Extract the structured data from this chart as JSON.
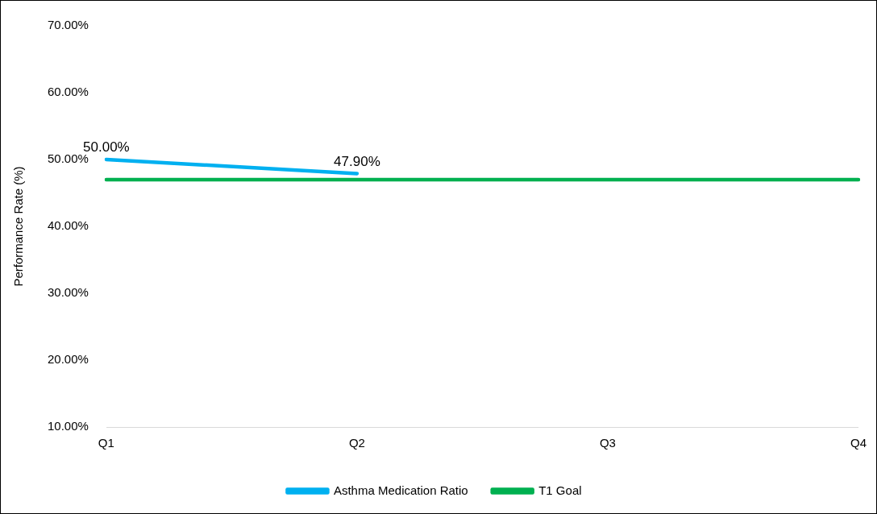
{
  "chart_data": {
    "type": "line",
    "ylabel": "Performance Rate (%)",
    "categories": [
      "Q1",
      "Q2",
      "Q3",
      "Q4"
    ],
    "series": [
      {
        "name": "Asthma Medication Ratio",
        "color": "#00b0f0",
        "values": [
          50.0,
          47.9,
          null,
          null
        ],
        "value_labels": [
          "50.00%",
          "47.90%",
          null,
          null
        ]
      },
      {
        "name": "T1 Goal",
        "color": "#00b050",
        "values": [
          47,
          47,
          47,
          47
        ]
      }
    ],
    "ylim": [
      10,
      70
    ],
    "yticks": [
      {
        "value": 10,
        "label": "10.00%"
      },
      {
        "value": 20,
        "label": "20.00%"
      },
      {
        "value": 30,
        "label": "30.00%"
      },
      {
        "value": 40,
        "label": "40.00%"
      },
      {
        "value": 50,
        "label": "50.00%"
      },
      {
        "value": 60,
        "label": "60.00%"
      },
      {
        "value": 70,
        "label": "70.00%"
      }
    ],
    "grid": false,
    "legend": "bottom",
    "marker": "none",
    "line_style": "solid"
  }
}
